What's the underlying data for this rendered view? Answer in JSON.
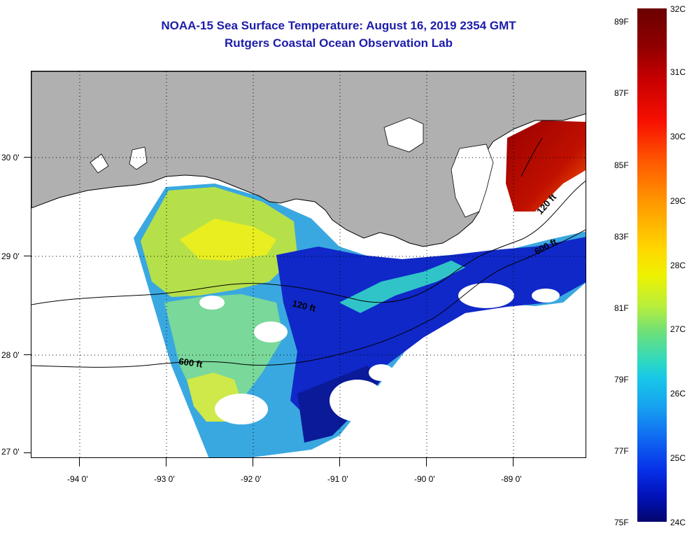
{
  "title": {
    "line1": "NOAA-15 Sea Surface Temperature:  August 16, 2019 2354 GMT",
    "line2": "Rutgers Coastal Ocean Observation Lab"
  },
  "map": {
    "lat_labels": [
      "30 0'",
      "29 0'",
      "28 0'",
      "27 0'"
    ],
    "lon_labels": [
      "-94 0'",
      "-93 0'",
      "-92 0'",
      "-91 0'",
      "-90 0'",
      "-89 0'"
    ],
    "isobath_labels": [
      "120 ft",
      "600 ft",
      "120 ft",
      "600 ft"
    ],
    "colors": {
      "land": "#b0b0b0",
      "no_data": "#ffffff",
      "coastline": "#000000"
    }
  },
  "colorbar": {
    "celsius_labels": [
      "32C",
      "31C",
      "30C",
      "29C",
      "28C",
      "27C",
      "26C",
      "25C",
      "24C"
    ],
    "fahrenheit_labels": [
      "89F",
      "87F",
      "85F",
      "83F",
      "81F",
      "79F",
      "77F",
      "75F"
    ]
  }
}
